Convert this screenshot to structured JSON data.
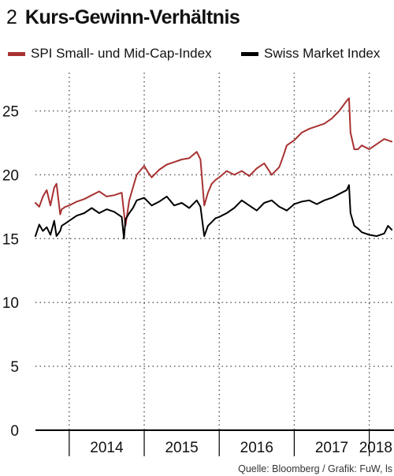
{
  "header": {
    "number": "2",
    "title": "Kurs-Gewinn-Verhältnis"
  },
  "source": "Quelle: Bloomberg / Grafik: FuW, ls",
  "colors": {
    "spi": "#a83232",
    "smi": "#000000",
    "grid": "#555555",
    "axis": "#000000"
  },
  "chart_data": {
    "type": "line",
    "title": "Kurs-Gewinn-Verhältnis",
    "xlabel": "",
    "ylabel": "",
    "ylim": [
      0,
      28
    ],
    "xlim": [
      2013.55,
      2018.33
    ],
    "y_ticks": [
      0,
      5,
      10,
      15,
      20,
      25
    ],
    "x_tick_labels": [
      "2014",
      "2015",
      "2016",
      "2017",
      "2018"
    ],
    "year_boundaries": [
      2014,
      2015,
      2016,
      2017,
      2018
    ],
    "grid": true,
    "legend_position": "top",
    "series": [
      {
        "name": "SPI Small- und Mid-Cap-Index",
        "color": "#a83232",
        "x": [
          2013.55,
          2013.6,
          2013.65,
          2013.7,
          2013.75,
          2013.8,
          2013.83,
          2013.88,
          2013.9,
          2013.95,
          2014.0,
          2014.1,
          2014.2,
          2014.3,
          2014.4,
          2014.5,
          2014.6,
          2014.7,
          2014.75,
          2014.8,
          2014.85,
          2014.9,
          2015.0,
          2015.05,
          2015.1,
          2015.2,
          2015.3,
          2015.4,
          2015.5,
          2015.6,
          2015.7,
          2015.75,
          2015.8,
          2015.85,
          2015.9,
          2015.95,
          2016.0,
          2016.1,
          2016.2,
          2016.3,
          2016.4,
          2016.5,
          2016.6,
          2016.7,
          2016.8,
          2016.85,
          2016.9,
          2017.0,
          2017.1,
          2017.2,
          2017.3,
          2017.4,
          2017.5,
          2017.6,
          2017.7,
          2017.73,
          2017.75,
          2017.8,
          2017.85,
          2017.9,
          2018.0,
          2018.1,
          2018.2,
          2018.3
        ],
        "y": [
          17.8,
          17.5,
          18.3,
          18.8,
          17.6,
          19.0,
          19.3,
          16.9,
          17.3,
          17.5,
          17.6,
          17.9,
          18.1,
          18.4,
          18.7,
          18.3,
          18.4,
          18.6,
          16.0,
          18.0,
          19.0,
          20.0,
          20.7,
          20.2,
          19.8,
          20.4,
          20.8,
          21.0,
          21.2,
          21.3,
          21.8,
          21.2,
          17.6,
          18.6,
          19.3,
          19.6,
          19.8,
          20.3,
          20.0,
          20.3,
          19.9,
          20.5,
          20.9,
          20.0,
          20.6,
          21.4,
          22.3,
          22.7,
          23.3,
          23.6,
          23.8,
          24.0,
          24.4,
          25.0,
          25.8,
          26.0,
          23.3,
          22.0,
          22.0,
          22.3,
          22.0,
          22.4,
          22.8,
          22.6
        ]
      },
      {
        "name": "Swiss Market Index",
        "color": "#000000",
        "x": [
          2013.55,
          2013.6,
          2013.65,
          2013.7,
          2013.75,
          2013.8,
          2013.83,
          2013.88,
          2013.9,
          2013.95,
          2014.0,
          2014.1,
          2014.2,
          2014.3,
          2014.4,
          2014.5,
          2014.6,
          2014.7,
          2014.73,
          2014.75,
          2014.8,
          2014.85,
          2014.9,
          2015.0,
          2015.1,
          2015.2,
          2015.3,
          2015.4,
          2015.5,
          2015.6,
          2015.7,
          2015.75,
          2015.8,
          2015.85,
          2015.9,
          2015.95,
          2016.0,
          2016.1,
          2016.2,
          2016.3,
          2016.4,
          2016.5,
          2016.6,
          2016.7,
          2016.8,
          2016.9,
          2017.0,
          2017.1,
          2017.2,
          2017.3,
          2017.4,
          2017.5,
          2017.6,
          2017.7,
          2017.73,
          2017.75,
          2017.8,
          2017.85,
          2017.9,
          2018.0,
          2018.1,
          2018.2,
          2018.25,
          2018.3
        ],
        "y": [
          15.2,
          16.1,
          15.6,
          15.9,
          15.3,
          16.4,
          15.2,
          15.6,
          16.0,
          16.2,
          16.4,
          16.8,
          17.0,
          17.4,
          17.0,
          17.3,
          17.1,
          16.7,
          15.0,
          16.5,
          17.0,
          17.4,
          18.0,
          18.2,
          17.6,
          17.9,
          18.3,
          17.6,
          17.8,
          17.4,
          18.0,
          17.5,
          15.2,
          16.0,
          16.3,
          16.6,
          16.7,
          17.0,
          17.4,
          18.0,
          17.6,
          17.2,
          17.8,
          18.0,
          17.5,
          17.2,
          17.7,
          17.9,
          18.0,
          17.7,
          18.0,
          18.2,
          18.5,
          18.8,
          19.2,
          17.0,
          16.0,
          15.8,
          15.5,
          15.3,
          15.2,
          15.4,
          16.0,
          15.7
        ]
      }
    ]
  }
}
